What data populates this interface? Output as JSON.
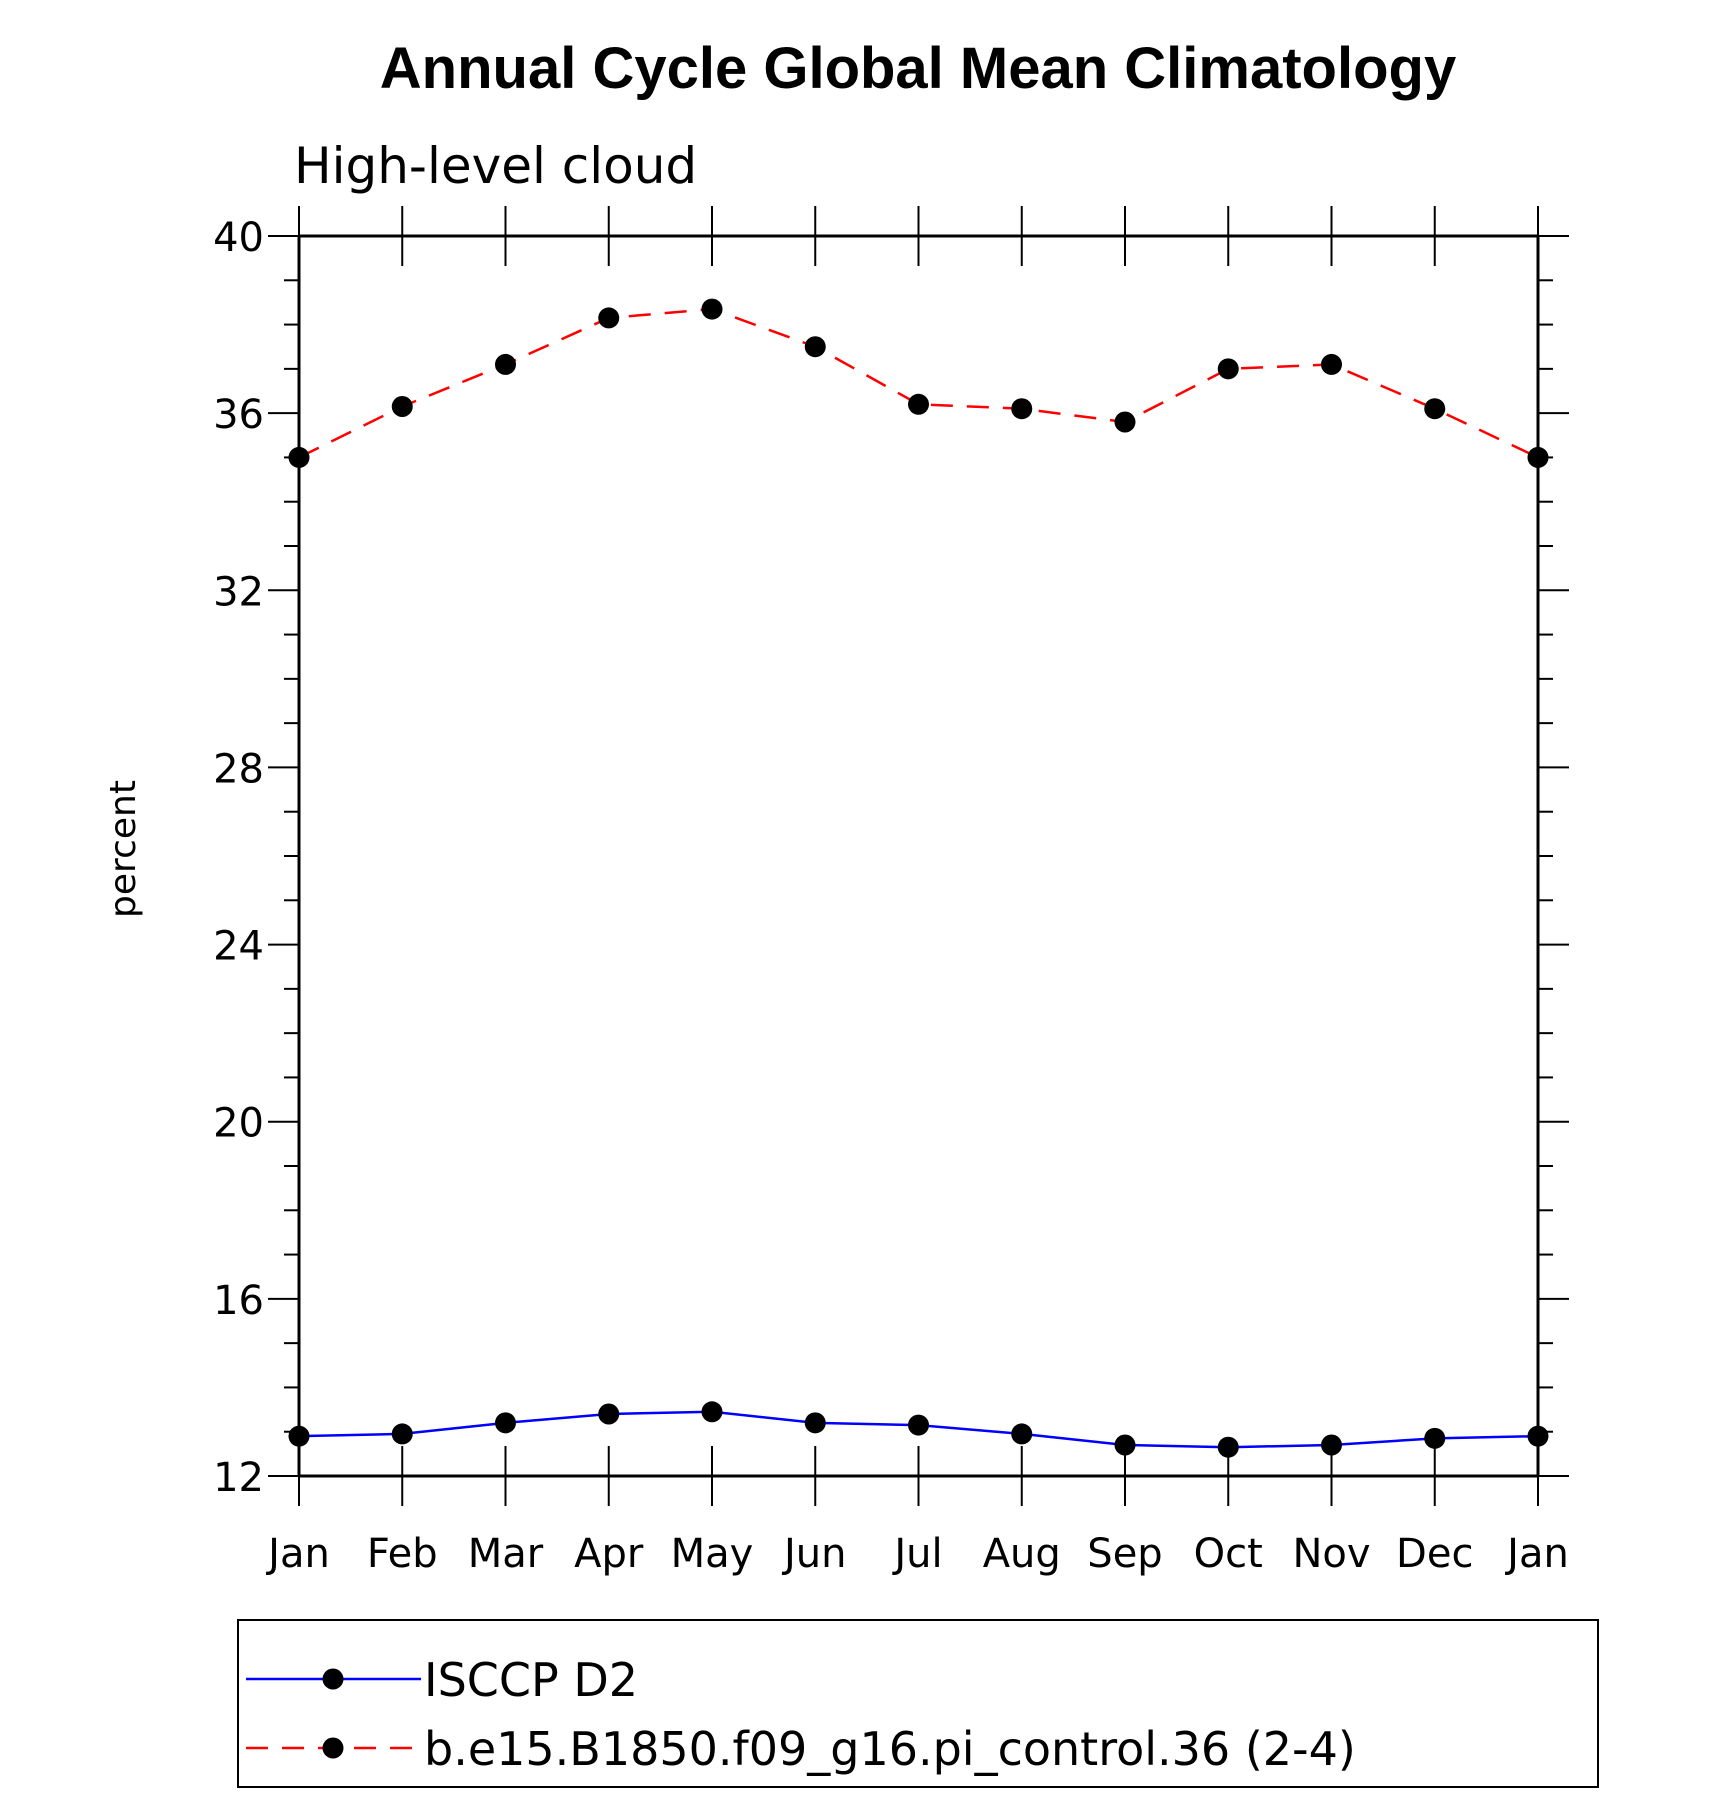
{
  "chart_data": {
    "type": "line",
    "title": "Annual Cycle Global Mean Climatology",
    "subtitle": "High-level cloud",
    "xlabel": "",
    "ylabel": "percent",
    "categories": [
      "Jan",
      "Feb",
      "Mar",
      "Apr",
      "May",
      "Jun",
      "Jul",
      "Aug",
      "Sep",
      "Oct",
      "Nov",
      "Dec",
      "Jan"
    ],
    "ylim": [
      12,
      40
    ],
    "yticks": [
      12,
      16,
      20,
      24,
      28,
      32,
      36,
      40
    ],
    "yminor_step": 1,
    "series": [
      {
        "name": "ISCCP D2",
        "color": "#0000ff",
        "line_style": "solid",
        "marker": "circle",
        "values": [
          12.9,
          12.95,
          13.2,
          13.4,
          13.45,
          13.2,
          13.15,
          12.95,
          12.7,
          12.65,
          12.7,
          12.85,
          12.9
        ]
      },
      {
        "name": "b.e15.B1850.f09_g16.pi_control.36 (2-4)",
        "color": "#ff0000",
        "line_style": "dashed",
        "marker": "circle",
        "values": [
          35.0,
          36.15,
          37.1,
          38.15,
          38.35,
          37.5,
          36.2,
          36.1,
          35.8,
          37.0,
          37.1,
          36.1,
          35.0
        ]
      }
    ],
    "legend_position": "bottom"
  }
}
